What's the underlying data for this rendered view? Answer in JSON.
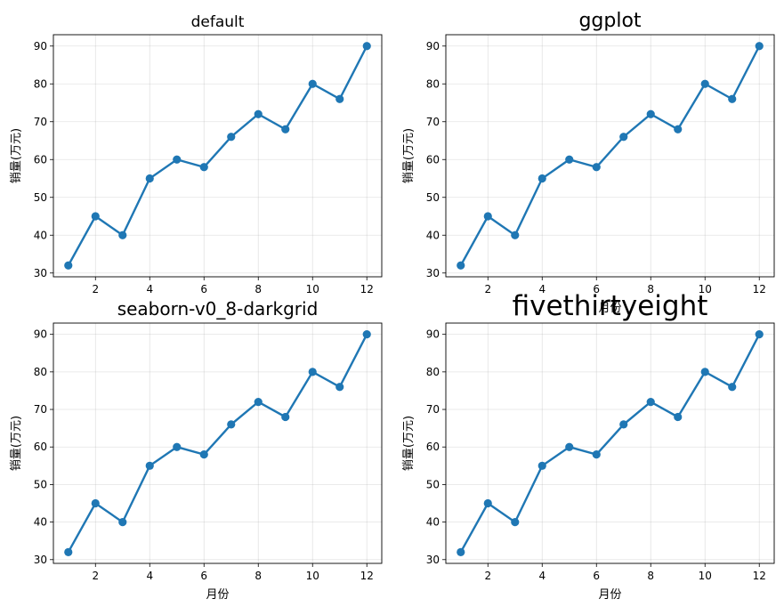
{
  "chart_data": [
    {
      "type": "line",
      "title": "default",
      "xlabel": "",
      "ylabel": "销量(万元)",
      "x": [
        1,
        2,
        3,
        4,
        5,
        6,
        7,
        8,
        9,
        10,
        11,
        12
      ],
      "values": [
        32,
        45,
        40,
        55,
        60,
        58,
        66,
        72,
        68,
        80,
        76,
        90
      ],
      "xlim": [
        0.45,
        12.55
      ],
      "ylim": [
        29,
        93
      ],
      "xticks": [
        2,
        4,
        6,
        8,
        10,
        12
      ],
      "yticks": [
        30,
        40,
        50,
        60,
        70,
        80,
        90
      ],
      "grid": true,
      "color": "#1f77b4"
    },
    {
      "type": "line",
      "title": "ggplot",
      "xlabel": "月份",
      "ylabel": "销量(万元)",
      "x": [
        1,
        2,
        3,
        4,
        5,
        6,
        7,
        8,
        9,
        10,
        11,
        12
      ],
      "values": [
        32,
        45,
        40,
        55,
        60,
        58,
        66,
        72,
        68,
        80,
        76,
        90
      ],
      "xlim": [
        0.45,
        12.55
      ],
      "ylim": [
        29,
        93
      ],
      "xticks": [
        2,
        4,
        6,
        8,
        10,
        12
      ],
      "yticks": [
        30,
        40,
        50,
        60,
        70,
        80,
        90
      ],
      "grid": true,
      "color": "#1f77b4"
    },
    {
      "type": "line",
      "title": "seaborn-v0_8-darkgrid",
      "xlabel": "月份",
      "ylabel": "销量(万元)",
      "x": [
        1,
        2,
        3,
        4,
        5,
        6,
        7,
        8,
        9,
        10,
        11,
        12
      ],
      "values": [
        32,
        45,
        40,
        55,
        60,
        58,
        66,
        72,
        68,
        80,
        76,
        90
      ],
      "xlim": [
        0.45,
        12.55
      ],
      "ylim": [
        29,
        93
      ],
      "xticks": [
        2,
        4,
        6,
        8,
        10,
        12
      ],
      "yticks": [
        30,
        40,
        50,
        60,
        70,
        80,
        90
      ],
      "grid": true,
      "color": "#1f77b4"
    },
    {
      "type": "line",
      "title": "fivethirtyeight",
      "xlabel": "月份",
      "ylabel": "销量(万元)",
      "x": [
        1,
        2,
        3,
        4,
        5,
        6,
        7,
        8,
        9,
        10,
        11,
        12
      ],
      "values": [
        32,
        45,
        40,
        55,
        60,
        58,
        66,
        72,
        68,
        80,
        76,
        90
      ],
      "xlim": [
        0.45,
        12.55
      ],
      "ylim": [
        29,
        93
      ],
      "xticks": [
        2,
        4,
        6,
        8,
        10,
        12
      ],
      "yticks": [
        30,
        40,
        50,
        60,
        70,
        80,
        90
      ],
      "grid": true,
      "color": "#1f77b4"
    }
  ]
}
